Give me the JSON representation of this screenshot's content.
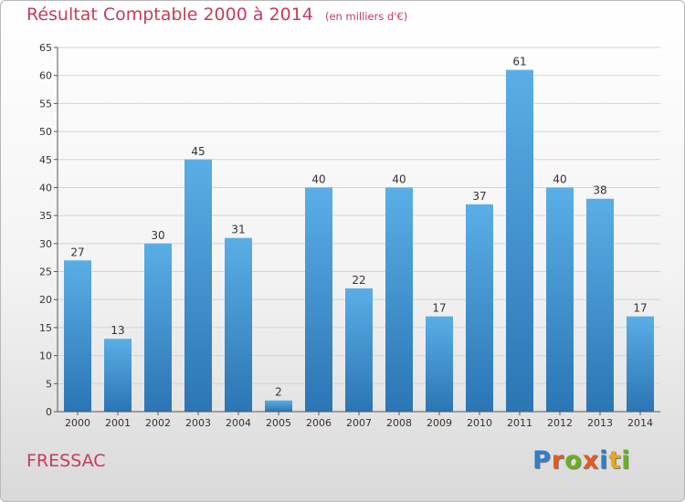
{
  "title": "Résultat Comptable 2000 à 2014",
  "subtitle": "(en milliers d'€)",
  "commune": "FRESSAC",
  "logo": {
    "text": "Proxiti",
    "letter_colors": [
      "#2f7fc9",
      "#e65a1f",
      "#68b21e",
      "#e65a1f",
      "#2f7fc9",
      "#e6a81a",
      "#68b21e"
    ]
  },
  "colors": {
    "bar_top": "#5aaee6",
    "bar_bottom": "#2b75b4",
    "grid": "#d4d4d4",
    "axis": "#555555",
    "title": "#c43d5b"
  },
  "chart_data": {
    "type": "bar",
    "categories": [
      "2000",
      "2001",
      "2002",
      "2003",
      "2004",
      "2005",
      "2006",
      "2007",
      "2008",
      "2009",
      "2010",
      "2011",
      "2012",
      "2013",
      "2014"
    ],
    "values": [
      27,
      13,
      30,
      45,
      31,
      2,
      40,
      22,
      40,
      17,
      37,
      61,
      40,
      38,
      17
    ],
    "title": "Résultat Comptable 2000 à 2014",
    "ylim": [
      0,
      65
    ],
    "yticks": [
      0,
      5,
      10,
      15,
      20,
      25,
      30,
      35,
      40,
      45,
      50,
      55,
      60,
      65
    ],
    "grid": true,
    "data_labels": true,
    "legend": "none"
  }
}
